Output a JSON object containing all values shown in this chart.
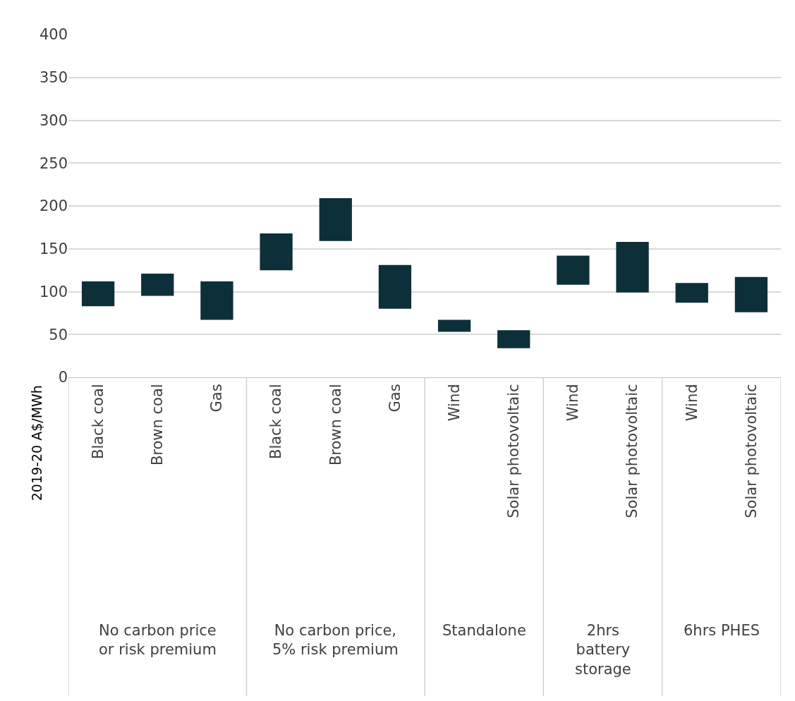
{
  "chart_data": {
    "type": "bar",
    "ylabel": "2019-20 A$/MWh",
    "categories": [
      "Black coal",
      "Brown coal",
      "Gas",
      "Black coal",
      "Brown coal",
      "Gas",
      "Wind",
      "Solar photovoltaic",
      "Wind",
      "Solar photovoltaic",
      "Wind",
      "Solar photovoltaic"
    ],
    "base": [
      83,
      95,
      67,
      125,
      159,
      80,
      53,
      34,
      108,
      99,
      87,
      76
    ],
    "values": [
      29,
      26,
      45,
      43,
      50,
      51,
      14,
      21,
      34,
      59,
      23,
      41
    ],
    "color": "#0d2f3a",
    "ylim": [
      0,
      400
    ],
    "yticks": [
      0,
      50,
      100,
      150,
      200,
      250,
      300,
      350,
      400
    ],
    "grid": "y",
    "legend": false,
    "annotations": [
      "No carbon price\nor risk premium",
      "No carbon price,\n5% risk premium",
      "Standalone",
      "2hrs\nbattery\nstorage",
      "6hrs PHES"
    ]
  }
}
